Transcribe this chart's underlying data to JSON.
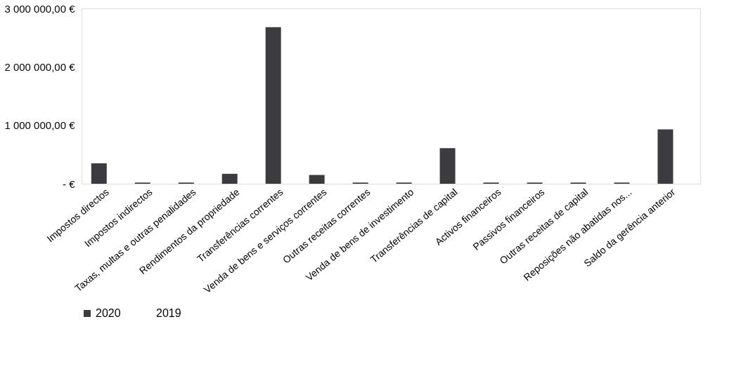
{
  "chart_data": {
    "type": "bar",
    "categories": [
      "Impostos directos",
      "Impostos indirectos",
      "Taxas, multas e outras penalidades",
      "Rendimentos da propriedade",
      "Transferências correntes",
      "Venda de bens e serviços correntes",
      "Outras receitas correntes",
      "Venda de bens de investimento",
      "Transferências de capital",
      "Activos financeiros",
      "Passivos financeiros",
      "Outras receitas de capital",
      "Reposições não abatidas nos...",
      "Saldo da gerência anterior"
    ],
    "series": [
      {
        "name": "2020",
        "color": "#3b3b40",
        "values": [
          350000,
          20000,
          20000,
          170000,
          2680000,
          150000,
          20000,
          20000,
          610000,
          20000,
          20000,
          20000,
          20000,
          930000
        ]
      },
      {
        "name": "2019",
        "values": [
          null,
          null,
          null,
          null,
          null,
          null,
          null,
          null,
          null,
          null,
          null,
          null,
          null,
          null
        ]
      }
    ],
    "ylim": [
      0,
      3000000
    ],
    "yticks": [
      {
        "value": 0,
        "label": "-   €"
      },
      {
        "value": 1000000,
        "label": "1 000 000,00 €"
      },
      {
        "value": 2000000,
        "label": "2 000 000,00 €"
      },
      {
        "value": 3000000,
        "label": "3 000 000,00 €"
      }
    ],
    "grid": false,
    "legend": "bottom"
  }
}
